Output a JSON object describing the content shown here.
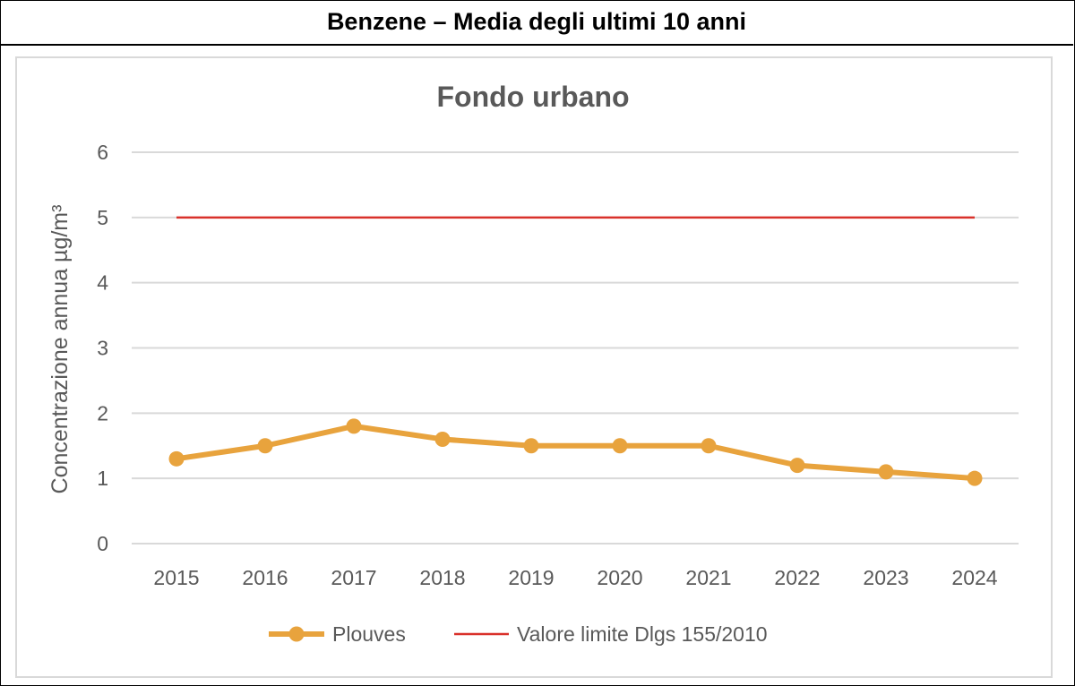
{
  "header": {
    "title": "Benzene – Media degli ultimi 10 anni"
  },
  "chart_data": {
    "type": "line",
    "title": "Fondo urbano",
    "ylabel": "Concentrazione annua µg/m³",
    "xlabel": "",
    "categories": [
      "2015",
      "2016",
      "2017",
      "2018",
      "2019",
      "2020",
      "2021",
      "2022",
      "2023",
      "2024"
    ],
    "ylim": [
      0,
      6
    ],
    "yticks": [
      0,
      1,
      2,
      3,
      4,
      5,
      6
    ],
    "grid": true,
    "legend_position": "bottom",
    "series": [
      {
        "name": "Plouves",
        "values": [
          1.3,
          1.5,
          1.8,
          1.6,
          1.5,
          1.5,
          1.5,
          1.2,
          1.1,
          1.0
        ],
        "color": "#e8a33d",
        "markers": true
      },
      {
        "name": "Valore limite Dlgs 155/2010",
        "values": [
          5,
          5,
          5,
          5,
          5,
          5,
          5,
          5,
          5,
          5
        ],
        "color": "#d9312b",
        "markers": false
      }
    ]
  }
}
